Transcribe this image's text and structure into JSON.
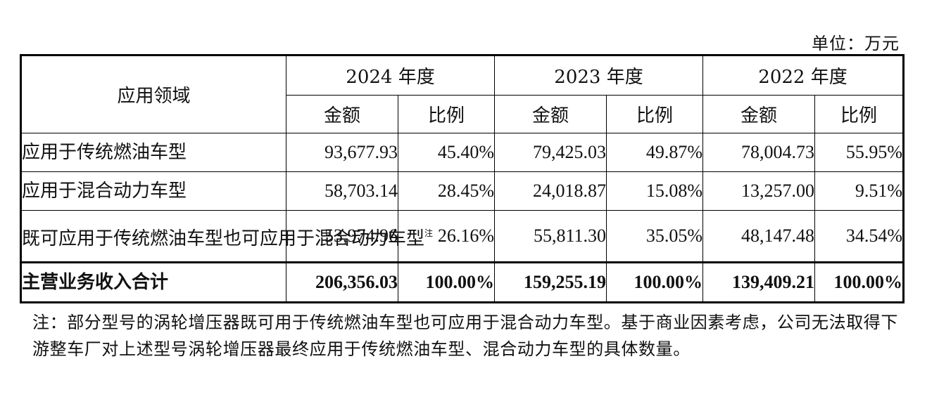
{
  "unit_label": "单位：万元",
  "table": {
    "header": {
      "domain": "应用领域",
      "years": [
        "2024 年度",
        "2023 年度",
        "2022 年度"
      ],
      "amount": "金额",
      "ratio": "比例"
    },
    "rows": [
      {
        "label": "应用于传统燃油车型",
        "values": [
          "93,677.93",
          "45.40%",
          "79,425.03",
          "49.87%",
          "78,004.73",
          "55.95%"
        ]
      },
      {
        "label": "应用于混合动力车型",
        "values": [
          "58,703.14",
          "28.45%",
          "24,018.87",
          "15.08%",
          "13,257.00",
          "9.51%"
        ]
      },
      {
        "label": "既可应用于传统燃油车型也可应用于混合动力车型",
        "footnote_mark": "注",
        "values": [
          "53,974.96",
          "26.16%",
          "55,811.30",
          "35.05%",
          "48,147.48",
          "34.54%"
        ]
      }
    ],
    "total": {
      "label": "主营业务收入合计",
      "values": [
        "206,356.03",
        "100.00%",
        "159,255.19",
        "100.00%",
        "139,409.21",
        "100.00%"
      ]
    }
  },
  "note": "注：部分型号的涡轮增压器既可用于传统燃油车型也可应用于混合动力车型。基于商业因素考虑，公司无法取得下游整车厂对上述型号涡轮增压器最终应用于传统燃油车型、混合动力车型的具体数量。"
}
